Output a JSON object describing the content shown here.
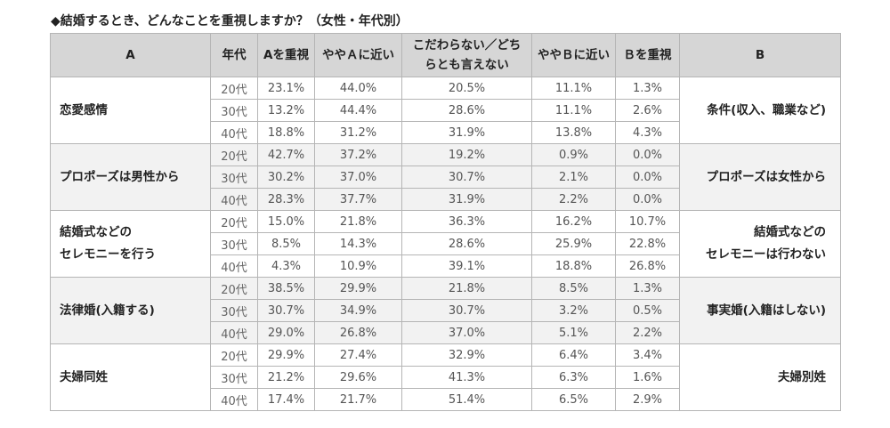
{
  "title": "◆結婚するとき、どんなことを重視しますか？（女性・年代別）",
  "headers": {
    "a": "A",
    "age": "年代",
    "a_focus": "Aを重視",
    "a_close": "ややＡに近い",
    "neutral_line1": "こだわらない／どち",
    "neutral_line2": "らとも言えない",
    "b_close": "ややＢに近い",
    "b_focus": "Ｂを重視",
    "b": "B"
  },
  "groups": [
    {
      "a_label": [
        "恋愛感情"
      ],
      "b_label": [
        "条件(収入、職業など)"
      ],
      "rows": [
        {
          "age": "20代",
          "v": [
            "23.1%",
            "44.0%",
            "20.5%",
            "11.1%",
            "1.3%"
          ]
        },
        {
          "age": "30代",
          "v": [
            "13.2%",
            "44.4%",
            "28.6%",
            "11.1%",
            "2.6%"
          ]
        },
        {
          "age": "40代",
          "v": [
            "18.8%",
            "31.2%",
            "31.9%",
            "13.8%",
            "4.3%"
          ]
        }
      ]
    },
    {
      "a_label": [
        "プロポーズは男性から"
      ],
      "b_label": [
        "プロポーズは女性から"
      ],
      "rows": [
        {
          "age": "20代",
          "v": [
            "42.7%",
            "37.2%",
            "19.2%",
            "0.9%",
            "0.0%"
          ]
        },
        {
          "age": "30代",
          "v": [
            "30.2%",
            "37.0%",
            "30.7%",
            "2.1%",
            "0.0%"
          ]
        },
        {
          "age": "40代",
          "v": [
            "28.3%",
            "37.7%",
            "31.9%",
            "2.2%",
            "0.0%"
          ]
        }
      ]
    },
    {
      "a_label": [
        "結婚式などの",
        "セレモニーを行う"
      ],
      "b_label": [
        "結婚式などの",
        "セレモニーは行わない"
      ],
      "rows": [
        {
          "age": "20代",
          "v": [
            "15.0%",
            "21.8%",
            "36.3%",
            "16.2%",
            "10.7%"
          ]
        },
        {
          "age": "30代",
          "v": [
            "8.5%",
            "14.3%",
            "28.6%",
            "25.9%",
            "22.8%"
          ]
        },
        {
          "age": "40代",
          "v": [
            "4.3%",
            "10.9%",
            "39.1%",
            "18.8%",
            "26.8%"
          ]
        }
      ]
    },
    {
      "a_label": [
        "法律婚(入籍する)"
      ],
      "b_label": [
        "事実婚(入籍はしない)"
      ],
      "rows": [
        {
          "age": "20代",
          "v": [
            "38.5%",
            "29.9%",
            "21.8%",
            "8.5%",
            "1.3%"
          ]
        },
        {
          "age": "30代",
          "v": [
            "30.7%",
            "34.9%",
            "30.7%",
            "3.2%",
            "0.5%"
          ]
        },
        {
          "age": "40代",
          "v": [
            "29.0%",
            "26.8%",
            "37.0%",
            "5.1%",
            "2.2%"
          ]
        }
      ]
    },
    {
      "a_label": [
        "夫婦同姓"
      ],
      "b_label": [
        "夫婦別姓"
      ],
      "rows": [
        {
          "age": "20代",
          "v": [
            "29.9%",
            "27.4%",
            "32.9%",
            "6.4%",
            "3.4%"
          ]
        },
        {
          "age": "30代",
          "v": [
            "21.2%",
            "29.6%",
            "41.3%",
            "6.3%",
            "1.6%"
          ]
        },
        {
          "age": "40代",
          "v": [
            "17.4%",
            "21.7%",
            "51.4%",
            "6.5%",
            "2.9%"
          ]
        }
      ]
    }
  ]
}
